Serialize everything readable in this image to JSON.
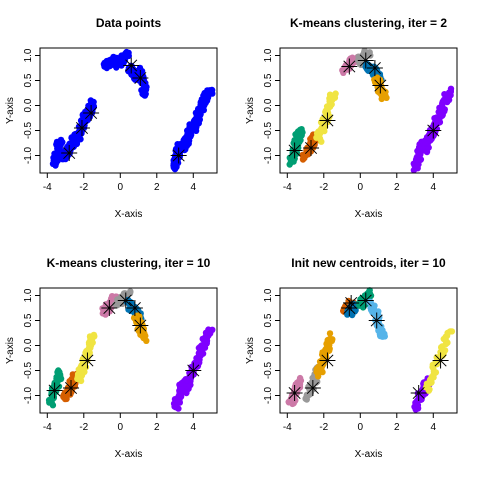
{
  "chart_data": [
    {
      "type": "scatter",
      "title": "Data points",
      "xlabel": "X-axis",
      "ylabel": "Y-axis",
      "xlim": [
        -4.4,
        5.3
      ],
      "ylim": [
        -1.35,
        1.15
      ],
      "xticks": [
        "-4",
        "-2",
        "0",
        "2",
        "4"
      ],
      "yticks": [
        "-1.0",
        "-0.5",
        "0.0",
        "0.5",
        "1.0"
      ],
      "clusters": [
        {
          "color": "#0000ff",
          "segment": [
            [
              -3.6,
              -1.15
            ],
            [
              -3.3,
              -0.7
            ]
          ]
        },
        {
          "color": "#0000ff",
          "segment": [
            [
              -3.1,
              -1.05
            ],
            [
              -2.4,
              -0.6
            ]
          ]
        },
        {
          "color": "#0000ff",
          "segment": [
            [
              -2.5,
              -0.8
            ],
            [
              -1.9,
              -0.2
            ]
          ]
        },
        {
          "color": "#0000ff",
          "segment": [
            [
              -2.0,
              -0.35
            ],
            [
              -1.5,
              0.05
            ]
          ]
        },
        {
          "color": "#0000ff",
          "segment": [
            [
              -0.8,
              0.78
            ],
            [
              -0.3,
              0.92
            ]
          ]
        },
        {
          "color": "#0000ff",
          "segment": [
            [
              -0.1,
              0.8
            ],
            [
              0.4,
              1.05
            ]
          ]
        },
        {
          "color": "#0000ff",
          "segment": [
            [
              0.5,
              0.75
            ],
            [
              0.9,
              0.55
            ]
          ]
        },
        {
          "color": "#0000ff",
          "segment": [
            [
              1.0,
              0.7
            ],
            [
              1.4,
              0.2
            ]
          ]
        },
        {
          "color": "#0000ff",
          "segment": [
            [
              3.0,
              -1.25
            ],
            [
              3.3,
              -0.8
            ]
          ]
        },
        {
          "color": "#0000ff",
          "segment": [
            [
              3.4,
              -0.9
            ],
            [
              4.0,
              -0.4
            ]
          ]
        },
        {
          "color": "#0000ff",
          "segment": [
            [
              4.0,
              -0.45
            ],
            [
              4.5,
              0.0
            ]
          ]
        },
        {
          "color": "#0000ff",
          "segment": [
            [
              4.4,
              -0.05
            ],
            [
              4.9,
              0.3
            ]
          ]
        }
      ],
      "centroids": [
        [
          -2.8,
          -0.95
        ],
        [
          -2.1,
          -0.45
        ],
        [
          -1.6,
          -0.15
        ],
        [
          0.6,
          0.8
        ],
        [
          1.1,
          0.55
        ],
        [
          3.2,
          -1.0
        ]
      ]
    },
    {
      "type": "scatter",
      "title": "K-means clustering, iter = 2",
      "xlabel": "X-axis",
      "ylabel": "Y-axis",
      "xlim": [
        -4.4,
        5.3
      ],
      "ylim": [
        -1.35,
        1.15
      ],
      "xticks": [
        "-4",
        "-2",
        "0",
        "2",
        "4"
      ],
      "yticks": [
        "-1.0",
        "-0.5",
        "0.0",
        "0.5",
        "1.0"
      ],
      "clusters": [
        {
          "color": "#009e73",
          "segment": [
            [
              -3.8,
              -1.15
            ],
            [
              -3.3,
              -0.5
            ]
          ]
        },
        {
          "color": "#d55e00",
          "segment": [
            [
              -3.1,
              -1.05
            ],
            [
              -2.4,
              -0.6
            ]
          ]
        },
        {
          "color": "#f0e442",
          "segment": [
            [
              -2.3,
              -0.7
            ],
            [
              -1.5,
              0.2
            ]
          ]
        },
        {
          "color": "#cc79a7",
          "segment": [
            [
              -0.9,
              0.7
            ],
            [
              -0.3,
              0.95
            ]
          ]
        },
        {
          "color": "#999999",
          "segment": [
            [
              -0.1,
              0.85
            ],
            [
              0.4,
              1.05
            ]
          ]
        },
        {
          "color": "#0072b2",
          "segment": [
            [
              0.4,
              0.8
            ],
            [
              1.1,
              0.55
            ]
          ]
        },
        {
          "color": "#e69f00",
          "segment": [
            [
              0.9,
              0.55
            ],
            [
              1.3,
              0.15
            ]
          ]
        },
        {
          "color": "#7f00ff",
          "segment": [
            [
              3.0,
              -1.25
            ],
            [
              3.5,
              -0.7
            ]
          ]
        },
        {
          "color": "#7f00ff",
          "segment": [
            [
              3.5,
              -0.9
            ],
            [
              4.2,
              -0.3
            ]
          ]
        },
        {
          "color": "#7f00ff",
          "segment": [
            [
              4.2,
              -0.35
            ],
            [
              4.9,
              0.3
            ]
          ]
        }
      ],
      "centroids": [
        [
          -3.6,
          -0.9
        ],
        [
          -2.7,
          -0.85
        ],
        [
          -1.8,
          -0.3
        ],
        [
          -0.6,
          0.78
        ],
        [
          0.3,
          0.9
        ],
        [
          0.8,
          0.75
        ],
        [
          1.1,
          0.4
        ],
        [
          4.0,
          -0.5
        ]
      ]
    },
    {
      "type": "scatter",
      "title": "K-means clustering, iter = 10",
      "xlabel": "X-axis",
      "ylabel": "Y-axis",
      "xlim": [
        -4.4,
        5.3
      ],
      "ylim": [
        -1.35,
        1.15
      ],
      "xticks": [
        "-4",
        "-2",
        "0",
        "2",
        "4"
      ],
      "yticks": [
        "-1.0",
        "-0.5",
        "0.0",
        "0.5",
        "1.0"
      ],
      "clusters": [
        {
          "color": "#009e73",
          "segment": [
            [
              -3.8,
              -1.15
            ],
            [
              -3.3,
              -0.5
            ]
          ]
        },
        {
          "color": "#d55e00",
          "segment": [
            [
              -3.0,
              -1.05
            ],
            [
              -2.4,
              -0.6
            ]
          ]
        },
        {
          "color": "#f0e442",
          "segment": [
            [
              -2.3,
              -0.7
            ],
            [
              -1.5,
              0.2
            ]
          ]
        },
        {
          "color": "#cc79a7",
          "segment": [
            [
              -0.9,
              0.65
            ],
            [
              -0.3,
              0.95
            ]
          ]
        },
        {
          "color": "#999999",
          "segment": [
            [
              -0.1,
              0.85
            ],
            [
              0.4,
              1.05
            ]
          ]
        },
        {
          "color": "#0072b2",
          "segment": [
            [
              0.4,
              0.85
            ],
            [
              1.1,
              0.55
            ]
          ]
        },
        {
          "color": "#e69f00",
          "segment": [
            [
              0.9,
              0.6
            ],
            [
              1.3,
              0.15
            ]
          ]
        },
        {
          "color": "#7f00ff",
          "segment": [
            [
              3.0,
              -1.25
            ],
            [
              3.5,
              -0.7
            ]
          ]
        },
        {
          "color": "#7f00ff",
          "segment": [
            [
              3.5,
              -0.9
            ],
            [
              4.2,
              -0.3
            ]
          ]
        },
        {
          "color": "#7f00ff",
          "segment": [
            [
              4.2,
              -0.35
            ],
            [
              4.9,
              0.3
            ]
          ]
        }
      ],
      "centroids": [
        [
          -3.6,
          -0.9
        ],
        [
          -2.7,
          -0.85
        ],
        [
          -1.8,
          -0.3
        ],
        [
          -0.6,
          0.75
        ],
        [
          0.3,
          0.9
        ],
        [
          0.8,
          0.75
        ],
        [
          1.1,
          0.4
        ],
        [
          4.0,
          -0.5
        ]
      ]
    },
    {
      "type": "scatter",
      "title": "Init new centroids, iter = 10",
      "xlabel": "X-axis",
      "ylabel": "Y-axis",
      "xlim": [
        -4.4,
        5.3
      ],
      "ylim": [
        -1.35,
        1.15
      ],
      "xticks": [
        "-4",
        "-2",
        "0",
        "2",
        "4"
      ],
      "yticks": [
        "-1.0",
        "-0.5",
        "0.0",
        "0.5",
        "1.0"
      ],
      "clusters": [
        {
          "color": "#cc79a7",
          "segment": [
            [
              -3.8,
              -1.15
            ],
            [
              -3.3,
              -0.7
            ]
          ]
        },
        {
          "color": "#999999",
          "segment": [
            [
              -3.0,
              -1.05
            ],
            [
              -2.2,
              -0.45
            ]
          ]
        },
        {
          "color": "#e69f00",
          "segment": [
            [
              -2.3,
              -0.6
            ],
            [
              -1.6,
              0.2
            ]
          ]
        },
        {
          "color": "#d55e00",
          "segment": [
            [
              -0.8,
              0.7
            ],
            [
              -0.5,
              0.85
            ]
          ]
        },
        {
          "color": "#0072b2",
          "segment": [
            [
              -0.6,
              0.65
            ],
            [
              -0.3,
              0.8
            ]
          ]
        },
        {
          "color": "#009e73",
          "segment": [
            [
              0.0,
              0.8
            ],
            [
              0.5,
              1.05
            ]
          ]
        },
        {
          "color": "#56b4e9",
          "segment": [
            [
              0.6,
              0.85
            ],
            [
              1.3,
              0.15
            ]
          ]
        },
        {
          "color": "#7f00ff",
          "segment": [
            [
              3.0,
              -1.25
            ],
            [
              3.7,
              -0.7
            ]
          ]
        },
        {
          "color": "#f0e442",
          "segment": [
            [
              3.6,
              -0.9
            ],
            [
              4.9,
              0.3
            ]
          ]
        }
      ],
      "centroids": [
        [
          -3.6,
          -0.95
        ],
        [
          -2.6,
          -0.85
        ],
        [
          -1.8,
          -0.3
        ],
        [
          -0.6,
          0.75
        ],
        [
          -0.5,
          0.85
        ],
        [
          0.3,
          0.9
        ],
        [
          0.9,
          0.5
        ],
        [
          3.2,
          -0.95
        ],
        [
          4.4,
          -0.3
        ]
      ]
    }
  ]
}
